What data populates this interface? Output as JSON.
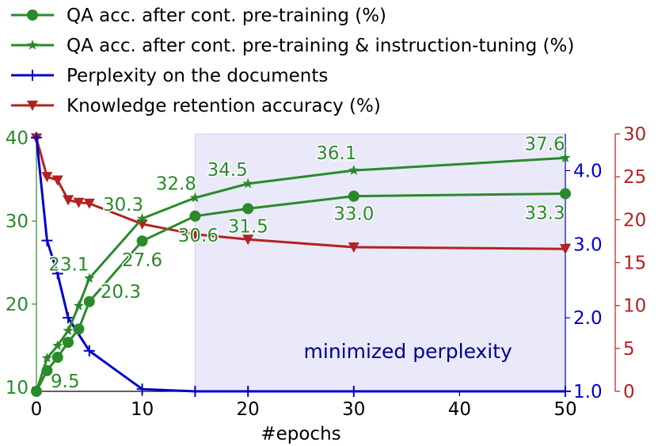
{
  "chart_data": {
    "type": "line",
    "xlabel": "#epochs",
    "x_ticks": [
      "0",
      "10",
      "20",
      "30",
      "40",
      "50"
    ],
    "xlim": [
      0,
      50
    ],
    "axes": {
      "left": {
        "ylim": [
          9.5,
          40.5
        ],
        "ticks": [
          "10",
          "20",
          "30",
          "40"
        ],
        "color": "#2a8a2a"
      },
      "right1": {
        "ylim": [
          1.0,
          4.5
        ],
        "ticks": [
          "1.0",
          "2.0",
          "3.0",
          "4.0"
        ],
        "color": "#0000cc"
      },
      "right2": {
        "ylim": [
          0,
          30
        ],
        "ticks": [
          "0",
          "5",
          "10",
          "15",
          "20",
          "25",
          "30"
        ],
        "color": "#b22222"
      }
    },
    "shaded_region": {
      "x_start": 15,
      "x_end": 50,
      "label": "minimized perplexity"
    },
    "series": [
      {
        "name": "QA acc. after cont. pre-training (%)",
        "axis": "left",
        "color": "#2a8a2a",
        "marker": "circle",
        "x": [
          0,
          1,
          2,
          3,
          4,
          5,
          10,
          15,
          20,
          30,
          50
        ],
        "values": [
          9.5,
          12.0,
          13.6,
          15.4,
          17.0,
          20.3,
          27.6,
          30.6,
          31.5,
          33.0,
          33.3
        ]
      },
      {
        "name": "QA acc. after cont. pre-training & instruction-tuning (%)",
        "axis": "left",
        "color": "#2a8a2a",
        "marker": "star",
        "x": [
          0,
          1,
          2,
          3,
          4,
          5,
          10,
          15,
          20,
          30,
          50
        ],
        "values": [
          9.5,
          13.5,
          15.0,
          16.8,
          19.8,
          23.1,
          30.3,
          32.8,
          34.5,
          36.1,
          37.6
        ]
      },
      {
        "name": "Perplexity on the documents",
        "axis": "right1",
        "color": "#0000cc",
        "marker": "plus",
        "x": [
          0,
          1,
          2,
          3,
          5,
          10,
          15,
          20,
          30,
          50
        ],
        "values": [
          4.45,
          3.05,
          2.6,
          2.0,
          1.55,
          1.03,
          1.0,
          1.0,
          1.0,
          1.0
        ]
      },
      {
        "name": "Knowledge retention accuracy (%)",
        "axis": "right2",
        "color": "#b22222",
        "marker": "triangle-down",
        "x": [
          0,
          1,
          2,
          3,
          4,
          5,
          10,
          15,
          20,
          30,
          50
        ],
        "values": [
          29.5,
          25.0,
          24.6,
          22.3,
          22.0,
          21.9,
          19.5,
          18.3,
          17.7,
          16.8,
          16.6
        ]
      }
    ],
    "annotations": [
      {
        "text": "9.5",
        "x": 0,
        "series": 0
      },
      {
        "text": "20.3",
        "x": 5,
        "series": 0
      },
      {
        "text": "27.6",
        "x": 10,
        "series": 0
      },
      {
        "text": "30.6",
        "x": 15,
        "series": 0
      },
      {
        "text": "31.5",
        "x": 20,
        "series": 0
      },
      {
        "text": "33.0",
        "x": 30,
        "series": 0
      },
      {
        "text": "33.3",
        "x": 50,
        "series": 0
      },
      {
        "text": "23.1",
        "x": 5,
        "series": 1
      },
      {
        "text": "30.3",
        "x": 10,
        "series": 1
      },
      {
        "text": "32.8",
        "x": 15,
        "series": 1
      },
      {
        "text": "34.5",
        "x": 20,
        "series": 1
      },
      {
        "text": "36.1",
        "x": 30,
        "series": 1
      },
      {
        "text": "37.6",
        "x": 50,
        "series": 1
      }
    ]
  }
}
